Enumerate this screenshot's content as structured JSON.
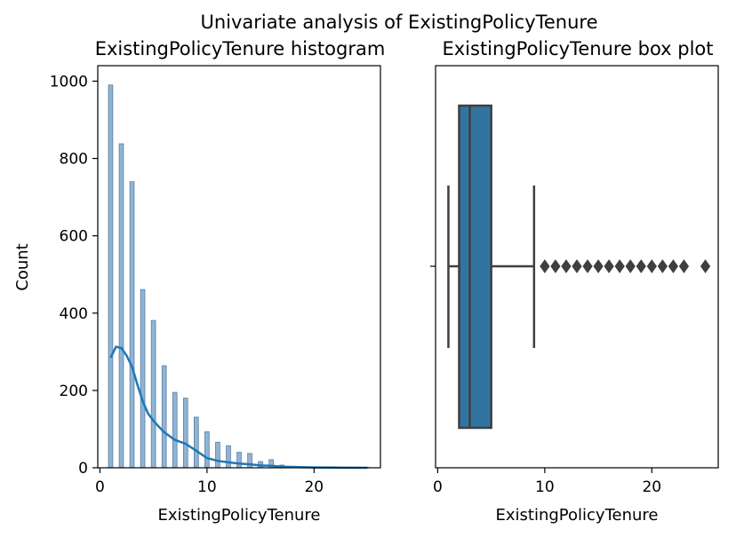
{
  "suptitle": "Univariate analysis of ExistingPolicyTenure",
  "chart_data": [
    {
      "type": "bar",
      "title": "ExistingPolicyTenure histogram",
      "xlabel": "ExistingPolicyTenure",
      "ylabel": "Count",
      "xlim": [
        -0.2,
        26.2
      ],
      "ylim": [
        0,
        1040
      ],
      "xticks": [
        0,
        10,
        20
      ],
      "yticks": [
        0,
        200,
        400,
        600,
        800,
        1000
      ],
      "bin_width": 0.4,
      "bins": [
        {
          "x": 1,
          "count": 990
        },
        {
          "x": 2,
          "count": 838
        },
        {
          "x": 3,
          "count": 740
        },
        {
          "x": 4,
          "count": 461
        },
        {
          "x": 5,
          "count": 381
        },
        {
          "x": 6,
          "count": 264
        },
        {
          "x": 7,
          "count": 195
        },
        {
          "x": 8,
          "count": 180
        },
        {
          "x": 9,
          "count": 131
        },
        {
          "x": 10,
          "count": 93
        },
        {
          "x": 11,
          "count": 66
        },
        {
          "x": 12,
          "count": 57
        },
        {
          "x": 13,
          "count": 40
        },
        {
          "x": 14,
          "count": 37
        },
        {
          "x": 15,
          "count": 16
        },
        {
          "x": 16,
          "count": 21
        },
        {
          "x": 17,
          "count": 7
        },
        {
          "x": 18,
          "count": 4
        },
        {
          "x": 19,
          "count": 3
        },
        {
          "x": 20,
          "count": 2
        },
        {
          "x": 21,
          "count": 2
        },
        {
          "x": 22,
          "count": 1
        },
        {
          "x": 23,
          "count": 1
        },
        {
          "x": 25,
          "count": 1
        }
      ],
      "kde": {
        "x": [
          1,
          1.5,
          2,
          2.5,
          3,
          3.5,
          4,
          4.5,
          5,
          5.5,
          6,
          7,
          8,
          9,
          10,
          11,
          12,
          13,
          14,
          15,
          16,
          17,
          18,
          20,
          22,
          25
        ],
        "y": [
          285,
          313,
          310,
          290,
          262,
          215,
          172,
          140,
          122,
          106,
          92,
          72,
          62,
          44,
          25,
          18,
          14,
          11,
          9,
          6,
          5,
          3,
          2,
          1,
          0.5,
          0
        ]
      },
      "bar_color": "#8fb4d5",
      "bar_edge": "#5a7ea0",
      "kde_color": "#1f77b4",
      "grid": false
    },
    {
      "type": "box",
      "title": "ExistingPolicyTenure box plot",
      "xlabel": "ExistingPolicyTenure",
      "xlim": [
        -0.2,
        26.2
      ],
      "xticks": [
        0,
        10,
        20
      ],
      "whisker_low": 1,
      "q1": 2,
      "median": 3,
      "q3": 5,
      "whisker_high": 9,
      "outliers": [
        10,
        11,
        12,
        13,
        14,
        15,
        16,
        17,
        18,
        19,
        20,
        21,
        22,
        23,
        25
      ],
      "box_color": "#3274a1",
      "line_color": "#3f3f3f",
      "grid": false
    }
  ]
}
